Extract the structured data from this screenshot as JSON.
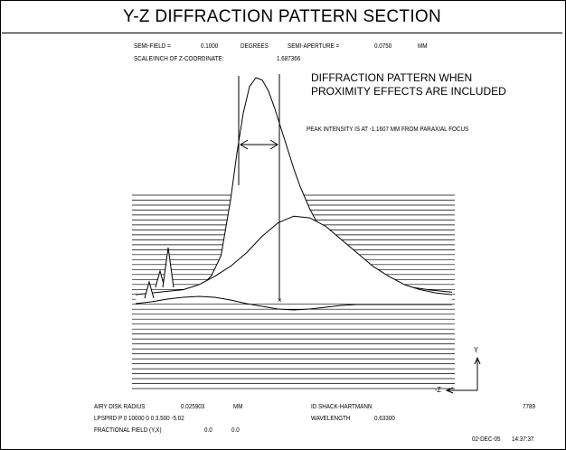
{
  "title": "Y-Z DIFFRACTION PATTERN SECTION",
  "header": {
    "semi_field_label": "SEMI-FIELD =",
    "semi_field_value": "0.1000",
    "semi_field_unit": "DEGREES",
    "semi_aperture_label": "SEMI-APERTURE =",
    "semi_aperture_value": "0.0750",
    "semi_aperture_unit": "MM",
    "scale_label": "SCALE/INCH OF Z-COORDINATE:",
    "scale_value": "1.687366"
  },
  "annotations": {
    "note_line1": "DIFFRACTION PATTERN WHEN",
    "note_line2": "PROXIMITY EFFECTS ARE INCLUDED",
    "peak": "PEAK INTENSITY IS AT -1.1607 MM FROM PARAXIAL FOCUS",
    "axis_y": "Y",
    "axis_z": "-Z"
  },
  "footer": {
    "airy_label": "AIRY DISK RADIUS",
    "airy_value": "0.025903",
    "airy_unit": "MM",
    "lpsprd": "LPSPRD P 0 10000 0 0 3.500 -5.02",
    "fractional_label": "FRACTIONAL FIELD (Y,X)",
    "fractional_y": "0.0",
    "fractional_x": "0.0",
    "lens_name": "ID SHACK-HARTMANN",
    "wavelength_label": "WAVELENGTH",
    "wavelength_value": "0.63300",
    "job_number": "7789",
    "date": "02-DEC-05",
    "time": "14:37:37"
  },
  "chart_data": {
    "type": "line",
    "title": "Y-Z DIFFRACTION PATTERN SECTION",
    "xlabel": "-Z",
    "ylabel": "Y",
    "grid": false,
    "baseline_count": 40,
    "series": [
      {
        "x": [
          0.0,
          0.04,
          0.08,
          0.12,
          0.16,
          0.2,
          0.24,
          0.27,
          0.3,
          0.32,
          0.34,
          0.36,
          0.38,
          0.4,
          0.42,
          0.44,
          0.46,
          0.48,
          0.5,
          0.52,
          0.55,
          0.58,
          0.62,
          0.66,
          0.7,
          0.75,
          0.8,
          0.86,
          0.93,
          1.0
        ],
        "y": [
          0.01,
          0.015,
          0.035,
          0.03,
          0.03,
          0.05,
          0.11,
          0.2,
          0.45,
          0.66,
          0.84,
          0.96,
          1.0,
          0.99,
          0.94,
          0.86,
          0.77,
          0.68,
          0.59,
          0.51,
          0.41,
          0.33,
          0.26,
          0.2,
          0.15,
          0.11,
          0.08,
          0.06,
          0.045,
          0.035
        ]
      },
      {
        "x": [
          0.0,
          0.05,
          0.1,
          0.15,
          0.2,
          0.25,
          0.3,
          0.35,
          0.4,
          0.45,
          0.5,
          0.55,
          0.6,
          0.65,
          0.7,
          0.75,
          0.8,
          0.85,
          0.9,
          0.95,
          1.0
        ],
        "y": [
          0.005,
          0.01,
          0.015,
          0.02,
          0.035,
          0.06,
          0.09,
          0.13,
          0.18,
          0.22,
          0.24,
          0.235,
          0.21,
          0.17,
          0.13,
          0.09,
          0.06,
          0.035,
          0.02,
          0.01,
          0.005
        ]
      },
      {
        "x": [
          0.0,
          0.05,
          0.1,
          0.15,
          0.2,
          0.25,
          0.3,
          0.35,
          0.4,
          0.45,
          0.5,
          0.55,
          0.6,
          0.65,
          0.7,
          0.75,
          0.8,
          0.85,
          0.9,
          0.95,
          1.0
        ],
        "y": [
          0.01,
          0.02,
          0.035,
          0.045,
          0.05,
          0.045,
          0.03,
          0.01,
          -0.005,
          -0.02,
          -0.025,
          -0.02,
          -0.01,
          0.0,
          0.005,
          0.005,
          0.005,
          0.005,
          0.005,
          0.005,
          0.005
        ]
      }
    ]
  }
}
